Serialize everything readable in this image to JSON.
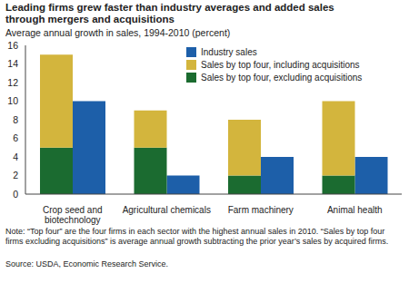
{
  "chart_data": {
    "type": "bar",
    "title": "Leading firms grew faster than industry averages and added sales through mergers and acquisitions",
    "subtitle": "Average annual growth in sales, 1994-2010 (percent)",
    "categories": [
      "Crop seed and biotechnology",
      "Agricultural chemicals",
      "Farm machinery",
      "Animal health"
    ],
    "series": [
      {
        "name": "Industry sales",
        "color": "#1d5fa9",
        "values": [
          10,
          2,
          4,
          4
        ]
      },
      {
        "name": "Sales by top four, including acquisitions",
        "color": "#d3b53d",
        "stacked": true,
        "values": [
          10,
          4,
          6,
          8
        ]
      },
      {
        "name": "Sales by top four, excluding acquisitions",
        "color": "#1b6b30",
        "stacked": true,
        "values": [
          5,
          5,
          2,
          2
        ]
      }
    ],
    "ylim": [
      0,
      16
    ],
    "yticks": [
      0,
      2,
      4,
      6,
      8,
      10,
      12,
      14,
      16
    ],
    "grid": false,
    "legend": "top-right",
    "note": "Note: “Top four” are the four firms in each sector with the highest annual sales in 2010. “Sales by top four firms excluding acquisitions” is average annual growth subtracting the prior year’s sales by acquired firms.",
    "source": "Source: USDA, Economic Research Service."
  }
}
